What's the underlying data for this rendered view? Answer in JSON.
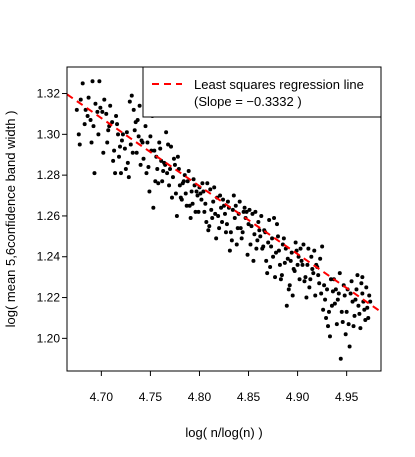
{
  "chart_data": {
    "type": "scatter",
    "title": "",
    "xlabel": "log( n/log(n) )",
    "ylabel": "log( mean 5,6confidence band width )",
    "xlim": [
      4.665,
      4.985
    ],
    "ylim": [
      1.184,
      1.333
    ],
    "x_ticks": [
      "4.70",
      "4.75",
      "4.80",
      "4.85",
      "4.90",
      "4.95"
    ],
    "y_ticks": [
      "1.20",
      "1.22",
      "1.24",
      "1.26",
      "1.28",
      "1.30",
      "1.32"
    ],
    "grid": false,
    "legend": {
      "position": "top-right",
      "entries": [
        {
          "label": "Least squares regression line",
          "color": "#ff0000",
          "style": "dashed"
        },
        {
          "label": "(Slope =  −0.3332 )"
        }
      ]
    },
    "regression": {
      "slope": -0.3332,
      "intercept": 2.874,
      "color": "#ff0000"
    },
    "point_color": "#000000",
    "points": [
      [
        4.679,
        1.317
      ],
      [
        4.681,
        1.325
      ],
      [
        4.684,
        1.312
      ],
      [
        4.687,
        1.318
      ],
      [
        4.689,
        1.307
      ],
      [
        4.691,
        1.326
      ],
      [
        4.692,
        1.304
      ],
      [
        4.694,
        1.315
      ],
      [
        4.696,
        1.311
      ],
      [
        4.698,
        1.326
      ],
      [
        4.675,
        1.312
      ],
      [
        4.677,
        1.3
      ],
      [
        4.678,
        1.295
      ],
      [
        4.683,
        1.305
      ],
      [
        4.686,
        1.309
      ],
      [
        4.69,
        1.296
      ],
      [
        4.693,
        1.281
      ],
      [
        4.697,
        1.3
      ],
      [
        4.699,
        1.313
      ],
      [
        4.701,
        1.311
      ],
      [
        4.703,
        1.317
      ],
      [
        4.705,
        1.31
      ],
      [
        4.707,
        1.302
      ],
      [
        4.709,
        1.314
      ],
      [
        4.711,
        1.306
      ],
      [
        4.713,
        1.292
      ],
      [
        4.715,
        1.309
      ],
      [
        4.717,
        1.3
      ],
      [
        4.719,
        1.294
      ],
      [
        4.721,
        1.297
      ],
      [
        4.702,
        1.291
      ],
      [
        4.706,
        1.296
      ],
      [
        4.708,
        1.304
      ],
      [
        4.712,
        1.287
      ],
      [
        4.714,
        1.281
      ],
      [
        4.716,
        1.305
      ],
      [
        4.718,
        1.289
      ],
      [
        4.72,
        1.281
      ],
      [
        4.722,
        1.3
      ],
      [
        4.724,
        1.293
      ],
      [
        4.726,
        1.301
      ],
      [
        4.727,
        1.286
      ],
      [
        4.729,
        1.316
      ],
      [
        4.731,
        1.319
      ],
      [
        4.733,
        1.312
      ],
      [
        4.735,
        1.306
      ],
      [
        4.736,
        1.291
      ],
      [
        4.738,
        1.299
      ],
      [
        4.74,
        1.285
      ],
      [
        4.742,
        1.296
      ],
      [
        4.725,
        1.283
      ],
      [
        4.728,
        1.279
      ],
      [
        4.73,
        1.295
      ],
      [
        4.732,
        1.291
      ],
      [
        4.734,
        1.302
      ],
      [
        4.737,
        1.307
      ],
      [
        4.739,
        1.314
      ],
      [
        4.741,
        1.297
      ],
      [
        4.743,
        1.288
      ],
      [
        4.745,
        1.304
      ],
      [
        4.747,
        1.296
      ],
      [
        4.748,
        1.284
      ],
      [
        4.75,
        1.299
      ],
      [
        4.752,
        1.309
      ],
      [
        4.754,
        1.292
      ],
      [
        4.756,
        1.289
      ],
      [
        4.758,
        1.276
      ],
      [
        4.759,
        1.296
      ],
      [
        4.761,
        1.287
      ],
      [
        4.763,
        1.282
      ],
      [
        4.746,
        1.281
      ],
      [
        4.749,
        1.272
      ],
      [
        4.751,
        1.292
      ],
      [
        4.753,
        1.264
      ],
      [
        4.755,
        1.277
      ],
      [
        4.757,
        1.283
      ],
      [
        4.76,
        1.293
      ],
      [
        4.762,
        1.277
      ],
      [
        4.764,
        1.286
      ],
      [
        4.766,
        1.301
      ],
      [
        4.765,
        1.285
      ],
      [
        4.767,
        1.281
      ],
      [
        4.769,
        1.275
      ],
      [
        4.771,
        1.294
      ],
      [
        4.773,
        1.279
      ],
      [
        4.775,
        1.285
      ],
      [
        4.776,
        1.271
      ],
      [
        4.778,
        1.289
      ],
      [
        4.78,
        1.275
      ],
      [
        4.782,
        1.268
      ],
      [
        4.768,
        1.295
      ],
      [
        4.77,
        1.283
      ],
      [
        4.772,
        1.269
      ],
      [
        4.774,
        1.288
      ],
      [
        4.777,
        1.26
      ],
      [
        4.779,
        1.283
      ],
      [
        4.781,
        1.269
      ],
      [
        4.783,
        1.276
      ],
      [
        4.785,
        1.28
      ],
      [
        4.787,
        1.265
      ],
      [
        4.784,
        1.277
      ],
      [
        4.786,
        1.271
      ],
      [
        4.788,
        1.277
      ],
      [
        4.79,
        1.265
      ],
      [
        4.792,
        1.272
      ],
      [
        4.794,
        1.278
      ],
      [
        4.796,
        1.262
      ],
      [
        4.798,
        1.27
      ],
      [
        4.8,
        1.274
      ],
      [
        4.802,
        1.268
      ],
      [
        4.789,
        1.282
      ],
      [
        4.791,
        1.259
      ],
      [
        4.793,
        1.266
      ],
      [
        4.795,
        1.275
      ],
      [
        4.797,
        1.272
      ],
      [
        4.799,
        1.262
      ],
      [
        4.801,
        1.271
      ],
      [
        4.803,
        1.276
      ],
      [
        4.805,
        1.262
      ],
      [
        4.807,
        1.257
      ],
      [
        4.804,
        1.272
      ],
      [
        4.806,
        1.266
      ],
      [
        4.808,
        1.276
      ],
      [
        4.81,
        1.255
      ],
      [
        4.812,
        1.263
      ],
      [
        4.814,
        1.267
      ],
      [
        4.816,
        1.261
      ],
      [
        4.818,
        1.269
      ],
      [
        4.82,
        1.254
      ],
      [
        4.822,
        1.264
      ],
      [
        4.809,
        1.253
      ],
      [
        4.811,
        1.273
      ],
      [
        4.813,
        1.259
      ],
      [
        4.815,
        1.274
      ],
      [
        4.817,
        1.249
      ],
      [
        4.819,
        1.26
      ],
      [
        4.821,
        1.27
      ],
      [
        4.823,
        1.257
      ],
      [
        4.825,
        1.265
      ],
      [
        4.827,
        1.252
      ],
      [
        4.824,
        1.268
      ],
      [
        4.826,
        1.261
      ],
      [
        4.828,
        1.256
      ],
      [
        4.83,
        1.264
      ],
      [
        4.832,
        1.252
      ],
      [
        4.834,
        1.263
      ],
      [
        4.836,
        1.259
      ],
      [
        4.838,
        1.246
      ],
      [
        4.84,
        1.261
      ],
      [
        4.842,
        1.254
      ],
      [
        4.829,
        1.267
      ],
      [
        4.831,
        1.243
      ],
      [
        4.833,
        1.248
      ],
      [
        4.835,
        1.27
      ],
      [
        4.837,
        1.265
      ],
      [
        4.839,
        1.254
      ],
      [
        4.841,
        1.267
      ],
      [
        4.843,
        1.249
      ],
      [
        4.845,
        1.262
      ],
      [
        4.847,
        1.259
      ],
      [
        4.844,
        1.252
      ],
      [
        4.846,
        1.264
      ],
      [
        4.848,
        1.262
      ],
      [
        4.85,
        1.256
      ],
      [
        4.852,
        1.246
      ],
      [
        4.854,
        1.261
      ],
      [
        4.856,
        1.251
      ],
      [
        4.858,
        1.244
      ],
      [
        4.86,
        1.257
      ],
      [
        4.862,
        1.25
      ],
      [
        4.849,
        1.241
      ],
      [
        4.851,
        1.263
      ],
      [
        4.853,
        1.255
      ],
      [
        4.855,
        1.238
      ],
      [
        4.857,
        1.262
      ],
      [
        4.859,
        1.248
      ],
      [
        4.861,
        1.253
      ],
      [
        4.863,
        1.26
      ],
      [
        4.865,
        1.245
      ],
      [
        4.867,
        1.252
      ],
      [
        4.864,
        1.244
      ],
      [
        4.866,
        1.253
      ],
      [
        4.868,
        1.238
      ],
      [
        4.87,
        1.247
      ],
      [
        4.872,
        1.235
      ],
      [
        4.874,
        1.249
      ],
      [
        4.876,
        1.259
      ],
      [
        4.878,
        1.242
      ],
      [
        4.88,
        1.25
      ],
      [
        4.882,
        1.236
      ],
      [
        4.869,
        1.232
      ],
      [
        4.871,
        1.258
      ],
      [
        4.873,
        1.245
      ],
      [
        4.875,
        1.24
      ],
      [
        4.877,
        1.23
      ],
      [
        4.879,
        1.256
      ],
      [
        4.881,
        1.243
      ],
      [
        4.883,
        1.229
      ],
      [
        4.885,
        1.246
      ],
      [
        4.887,
        1.237
      ],
      [
        4.884,
        1.231
      ],
      [
        4.886,
        1.249
      ],
      [
        4.888,
        1.244
      ],
      [
        4.89,
        1.239
      ],
      [
        4.892,
        1.226
      ],
      [
        4.894,
        1.242
      ],
      [
        4.896,
        1.234
      ],
      [
        4.898,
        1.247
      ],
      [
        4.9,
        1.236
      ],
      [
        4.902,
        1.229
      ],
      [
        4.889,
        1.216
      ],
      [
        4.891,
        1.224
      ],
      [
        4.893,
        1.238
      ],
      [
        4.895,
        1.221
      ],
      [
        4.897,
        1.233
      ],
      [
        4.899,
        1.243
      ],
      [
        4.901,
        1.24
      ],
      [
        4.903,
        1.244
      ],
      [
        4.905,
        1.236
      ],
      [
        4.907,
        1.228
      ],
      [
        4.904,
        1.238
      ],
      [
        4.906,
        1.246
      ],
      [
        4.908,
        1.23
      ],
      [
        4.91,
        1.236
      ],
      [
        4.912,
        1.225
      ],
      [
        4.914,
        1.24
      ],
      [
        4.916,
        1.232
      ],
      [
        4.918,
        1.221
      ],
      [
        4.92,
        1.235
      ],
      [
        4.922,
        1.227
      ],
      [
        4.909,
        1.22
      ],
      [
        4.911,
        1.244
      ],
      [
        4.913,
        1.229
      ],
      [
        4.915,
        1.234
      ],
      [
        4.917,
        1.243
      ],
      [
        4.919,
        1.236
      ],
      [
        4.921,
        1.231
      ],
      [
        4.923,
        1.239
      ],
      [
        4.925,
        1.245
      ],
      [
        4.927,
        1.226
      ],
      [
        4.924,
        1.222
      ],
      [
        4.926,
        1.214
      ],
      [
        4.928,
        1.219
      ],
      [
        4.93,
        1.224
      ],
      [
        4.932,
        1.213
      ],
      [
        4.934,
        1.229
      ],
      [
        4.936,
        1.223
      ],
      [
        4.938,
        1.217
      ],
      [
        4.94,
        1.207
      ],
      [
        4.942,
        1.222
      ],
      [
        4.929,
        1.21
      ],
      [
        4.931,
        1.206
      ],
      [
        4.933,
        1.201
      ],
      [
        4.935,
        1.216
      ],
      [
        4.937,
        1.229
      ],
      [
        4.939,
        1.224
      ],
      [
        4.941,
        1.219
      ],
      [
        4.943,
        1.232
      ],
      [
        4.945,
        1.213
      ],
      [
        4.947,
        1.226
      ],
      [
        4.944,
        1.19
      ],
      [
        4.946,
        1.208
      ],
      [
        4.948,
        1.221
      ],
      [
        4.95,
        1.213
      ],
      [
        4.952,
        1.207
      ],
      [
        4.954,
        1.222
      ],
      [
        4.956,
        1.218
      ],
      [
        4.958,
        1.211
      ],
      [
        4.96,
        1.224
      ],
      [
        4.962,
        1.216
      ],
      [
        4.949,
        1.202
      ],
      [
        4.951,
        1.224
      ],
      [
        4.953,
        1.196
      ],
      [
        4.955,
        1.228
      ],
      [
        4.957,
        1.206
      ],
      [
        4.959,
        1.219
      ],
      [
        4.961,
        1.231
      ],
      [
        4.963,
        1.212
      ],
      [
        4.965,
        1.227
      ],
      [
        4.967,
        1.218
      ],
      [
        4.964,
        1.205
      ],
      [
        4.966,
        1.222
      ],
      [
        4.968,
        1.214
      ],
      [
        4.97,
        1.225
      ],
      [
        4.972,
        1.21
      ],
      [
        4.974,
        1.218
      ],
      [
        4.969,
        1.209
      ],
      [
        4.971,
        1.215
      ],
      [
        4.973,
        1.221
      ],
      [
        4.966,
        1.23
      ]
    ]
  }
}
